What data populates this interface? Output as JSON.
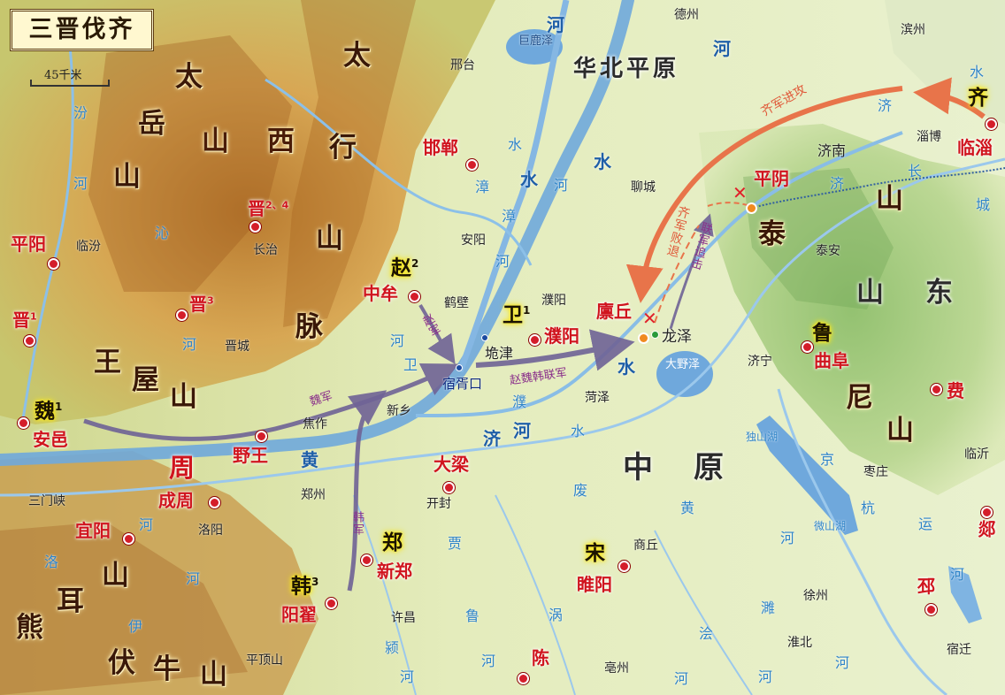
{
  "title": "三晋伐齐",
  "scale": "45千米",
  "colors": {
    "hill": "#c98a2e",
    "lowland": "#e4ecc0",
    "river": "#6fa8dc",
    "allied_arrow": "#7a6c9e",
    "qi_arrow": "#e8744a",
    "ancient_place": "#d0141e"
  },
  "mountains": {
    "taiyue": [
      "太",
      "岳",
      "山"
    ],
    "shanxi": [
      "山",
      "西"
    ],
    "taihang": [
      "太",
      "行",
      "山",
      "脉"
    ],
    "wangwu": [
      "王",
      "屋",
      "山"
    ],
    "xionger": [
      "熊",
      "耳",
      "山"
    ],
    "funiu": [
      "伏",
      "牛",
      "山"
    ],
    "tai": "泰",
    "shandong": [
      "山",
      "东"
    ],
    "ni": [
      "尼",
      "山"
    ]
  },
  "plains": {
    "huabei": "华北平原",
    "zhongyuan": [
      "中",
      "原"
    ]
  },
  "states": {
    "qi": "齐",
    "zhao": {
      "name": "赵",
      "note": "2"
    },
    "wei_state": {
      "name": "卫",
      "note": "1"
    },
    "wei": {
      "name": "魏",
      "note": "1"
    },
    "han": {
      "name": "韩",
      "note": "3"
    },
    "zhou": "周",
    "zheng": "郑",
    "song": "宋",
    "lu": "鲁"
  },
  "ancient_places": {
    "linzi": "临淄",
    "pingyin": "平阴",
    "handan": "邯郸",
    "jin24": {
      "name": "晋",
      "note": "2、4"
    },
    "pingyang": "平阳",
    "jin3": {
      "name": "晋",
      "note": "3"
    },
    "jin1": {
      "name": "晋",
      "note": "1"
    },
    "zhongmou": "中牟",
    "puyang": "濮阳",
    "linqiu": "廪丘",
    "anyi": "安邑",
    "yewang": "野王",
    "chengzhou": "成周",
    "daliang": "大梁",
    "yiyang": "宜阳",
    "xinzheng": "新郑",
    "yangdi": "阳翟",
    "suiyang": "睢阳",
    "chen": "陈",
    "qufu": "曲阜",
    "fei": "费",
    "tan": "郯",
    "pi": "邳"
  },
  "modern_cities": {
    "dezhou": "德州",
    "binzhou": "滨州",
    "zibo": "淄博",
    "jinan": "济南",
    "liaocheng": "聊城",
    "xingtai": "邢台",
    "linfen": "临汾",
    "changzhi": "长治",
    "anyang": "安阳",
    "hebi": "鹤壁",
    "puyang": "濮阳",
    "taian": "泰安",
    "jincheng": "晋城",
    "jining": "济宁",
    "heze": "菏泽",
    "xinxiang": "新乡",
    "jiaozuo": "焦作",
    "zaozhuang": "枣庄",
    "linyi": "临沂",
    "sanmenxia": "三门峡",
    "luoyang": "洛阳",
    "zhengzhou": "郑州",
    "kaifeng": "开封",
    "shangqiu": "商丘",
    "xuzhou": "徐州",
    "huaibei": "淮北",
    "xuchang": "许昌",
    "pingdingshan": "平顶山",
    "bozhou": "亳州",
    "suqian": "宿迁"
  },
  "other_points": {
    "longze": "龙泽",
    "tuojin": "垝津",
    "suxukou": "宿胥口",
    "daye": "大野泽",
    "julu": "巨鹿泽"
  },
  "rivers": {
    "he_north": "河",
    "he_mid": "河",
    "shui1": "水",
    "shui2": "水",
    "huang": "黄",
    "he": "河",
    "ji": "济",
    "shui3": "水",
    "zhang": "漳",
    "shui4": "水",
    "fen": "汾",
    "fen_he": "河",
    "qin": "沁",
    "qin_he": "河",
    "luo": "洛",
    "luo_he": "河",
    "yi": "伊",
    "ji2": "济",
    "he3": "河",
    "pu": "濮",
    "shui5": "水",
    "fei": "废",
    "huang2": "黄",
    "he4": "河",
    "jing": "京",
    "hang": "杭",
    "yun": "运",
    "he5": "河",
    "wei": "卫",
    "he6": "河",
    "zhang2": "漳",
    "he7": "河",
    "dushan": "独山湖",
    "weishan": "微山湖",
    "chang": "长",
    "cheng": "城",
    "ji3": "济",
    "shui6": "水",
    "ying": "颍",
    "ying_he": "河",
    "gu": "贾",
    "lu": "鲁",
    "he8": "河",
    "guo": "涡",
    "he9": "河",
    "kuai": "浍",
    "he10": "河",
    "sui": "濉",
    "he11": "河",
    "he12": "河"
  },
  "armies": {
    "zhao_army": "赵军",
    "wei_army": "魏军",
    "han_army": "韩军",
    "allied": "赵魏韩联军",
    "qi_attack": "齐军进攻",
    "qi_defeat": "齐军败退",
    "allied_pursuit": "联军追击"
  }
}
